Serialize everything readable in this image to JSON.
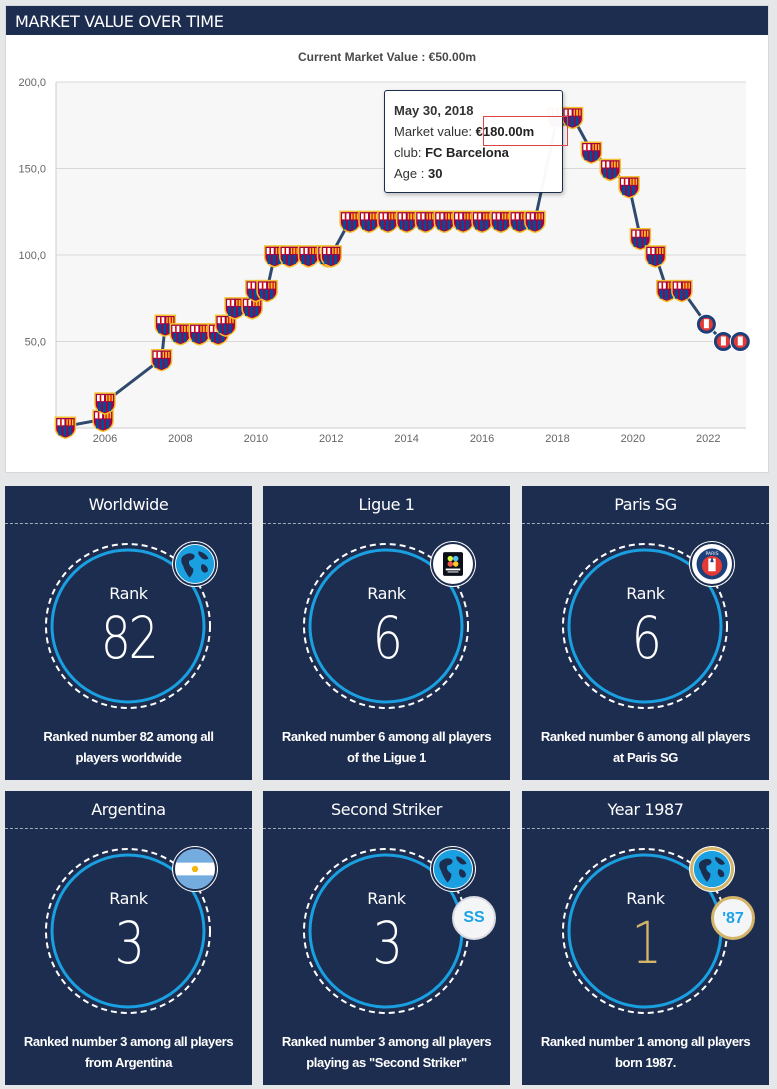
{
  "market_value": {
    "header": "MARKET VALUE OVER TIME",
    "current_label": "Current Market Value : €50.00m",
    "tooltip": {
      "date": "May 30, 2018",
      "mv_label": "Market value: ",
      "mv_value": "€180.00m",
      "club_label": "club: ",
      "club_value": "FC Barcelona",
      "age_label": "Age : ",
      "age_value": "30"
    }
  },
  "chart_data": {
    "type": "line",
    "ylim": [
      0,
      200
    ],
    "xlim": [
      2004.7,
      2023.0
    ],
    "y_ticks": [
      "200,0",
      "150,0",
      "100,0",
      "50,0"
    ],
    "y_tick_values": [
      200,
      150,
      100,
      50
    ],
    "x_ticks": [
      "2006",
      "2008",
      "2010",
      "2012",
      "2014",
      "2016",
      "2018",
      "2020",
      "2022"
    ],
    "x_tick_values": [
      2006,
      2008,
      2010,
      2012,
      2014,
      2016,
      2018,
      2020,
      2022
    ],
    "grid": true,
    "colors": {
      "line": "#2f4a6e",
      "grid": "#d8d8d8",
      "plot_bg": "#f7f7f7"
    },
    "series": [
      {
        "points": [
          [
            2004.95,
            1,
            "fcb"
          ],
          [
            2005.95,
            5,
            "fcb"
          ],
          [
            2006.0,
            15,
            "fcb"
          ],
          [
            2007.5,
            40,
            "fcb"
          ],
          [
            2007.6,
            60,
            "fcb"
          ],
          [
            2008.0,
            55,
            "fcb"
          ],
          [
            2008.5,
            55,
            "fcb"
          ],
          [
            2009.0,
            55,
            "fcb"
          ],
          [
            2009.2,
            60,
            "fcb"
          ],
          [
            2009.45,
            70,
            "fcb"
          ],
          [
            2009.9,
            70,
            "fcb"
          ],
          [
            2010.0,
            80,
            "fcb"
          ],
          [
            2010.3,
            80,
            "fcb"
          ],
          [
            2010.5,
            100,
            "fcb"
          ],
          [
            2010.9,
            100,
            "fcb"
          ],
          [
            2011.4,
            100,
            "fcb"
          ],
          [
            2011.9,
            100,
            "fcb"
          ],
          [
            2012.0,
            100,
            "fcb"
          ],
          [
            2012.5,
            120,
            "fcb"
          ],
          [
            2013.0,
            120,
            "fcb"
          ],
          [
            2013.5,
            120,
            "fcb"
          ],
          [
            2014.0,
            120,
            "fcb"
          ],
          [
            2014.5,
            120,
            "fcb"
          ],
          [
            2015.0,
            120,
            "fcb"
          ],
          [
            2015.5,
            120,
            "fcb"
          ],
          [
            2016.0,
            120,
            "fcb"
          ],
          [
            2016.5,
            120,
            "fcb"
          ],
          [
            2017.0,
            120,
            "fcb"
          ],
          [
            2017.4,
            120,
            "fcb"
          ],
          [
            2018.0,
            180,
            "fcb"
          ],
          [
            2018.4,
            180,
            "fcb"
          ],
          [
            2018.9,
            160,
            "fcb"
          ],
          [
            2019.4,
            150,
            "fcb"
          ],
          [
            2019.9,
            140,
            "fcb"
          ],
          [
            2020.2,
            110,
            "fcb"
          ],
          [
            2020.6,
            100,
            "fcb"
          ],
          [
            2020.9,
            80,
            "fcb"
          ],
          [
            2021.3,
            80,
            "fcb"
          ],
          [
            2021.95,
            60,
            "psg"
          ],
          [
            2022.4,
            50,
            "psg"
          ],
          [
            2022.85,
            50,
            "psg"
          ]
        ]
      }
    ]
  },
  "rankings": [
    {
      "title": "Worldwide",
      "rank_label": "Rank",
      "rank": "82",
      "desc": "Ranked number 82 among all players worldwide",
      "badge": "globe-icon"
    },
    {
      "title": "Ligue 1",
      "rank_label": "Rank",
      "rank": "6",
      "desc": "Ranked number 6 among all players of the Ligue 1",
      "badge": "ligue1-logo"
    },
    {
      "title": "Paris SG",
      "rank_label": "Rank",
      "rank": "6",
      "desc": "Ranked number 6 among all players at Paris SG",
      "badge": "psg-crest"
    },
    {
      "title": "Argentina",
      "rank_label": "Rank",
      "rank": "3",
      "desc": "Ranked number 3 among all players from Argentina",
      "badge": "argentina-flag"
    },
    {
      "title": "Second Striker",
      "rank_label": "Rank",
      "rank": "3",
      "desc": "Ranked number 3 among all players playing as \"Second Striker\"",
      "badge": "globe-icon",
      "pill": "SS"
    },
    {
      "title": "Year 1987",
      "rank_label": "Rank",
      "rank": "1",
      "desc": "Ranked number 1 among all players born 1987.",
      "badge": "globe-icon",
      "pill": "'87"
    }
  ]
}
